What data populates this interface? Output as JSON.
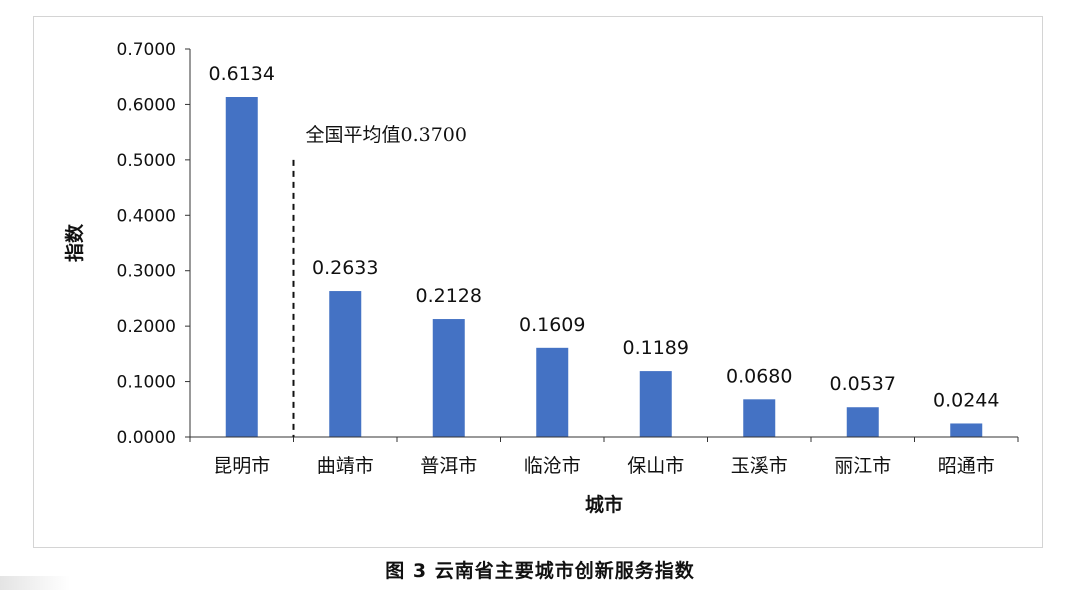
{
  "caption": "图 3 云南省主要城市创新服务指数",
  "chart_data": {
    "type": "bar",
    "title": "",
    "xlabel": "城市",
    "ylabel": "指数",
    "ylim": [
      0,
      0.7
    ],
    "yticks": [
      0,
      0.1,
      0.2,
      0.3,
      0.4,
      0.5,
      0.6,
      0.7
    ],
    "ytick_labels": [
      "0.0000",
      "0.1000",
      "0.2000",
      "0.3000",
      "0.4000",
      "0.5000",
      "0.6000",
      "0.7000"
    ],
    "categories": [
      "昆明市",
      "曲靖市",
      "普洱市",
      "临沧市",
      "保山市",
      "玉溪市",
      "丽江市",
      "昭通市"
    ],
    "values": [
      0.6134,
      0.2633,
      0.2128,
      0.1609,
      0.1189,
      0.068,
      0.0537,
      0.0244
    ],
    "value_labels": [
      "0.6134",
      "0.2633",
      "0.2128",
      "0.1609",
      "0.1189",
      "0.0680",
      "0.0537",
      "0.0244"
    ],
    "bar_color": "#4472c4",
    "grid": false,
    "legend": "none",
    "annotation": {
      "text": "全国平均值0.3700",
      "value": 0.37,
      "style": "dashed",
      "position": "between 昆明市 and 曲靖市"
    }
  }
}
